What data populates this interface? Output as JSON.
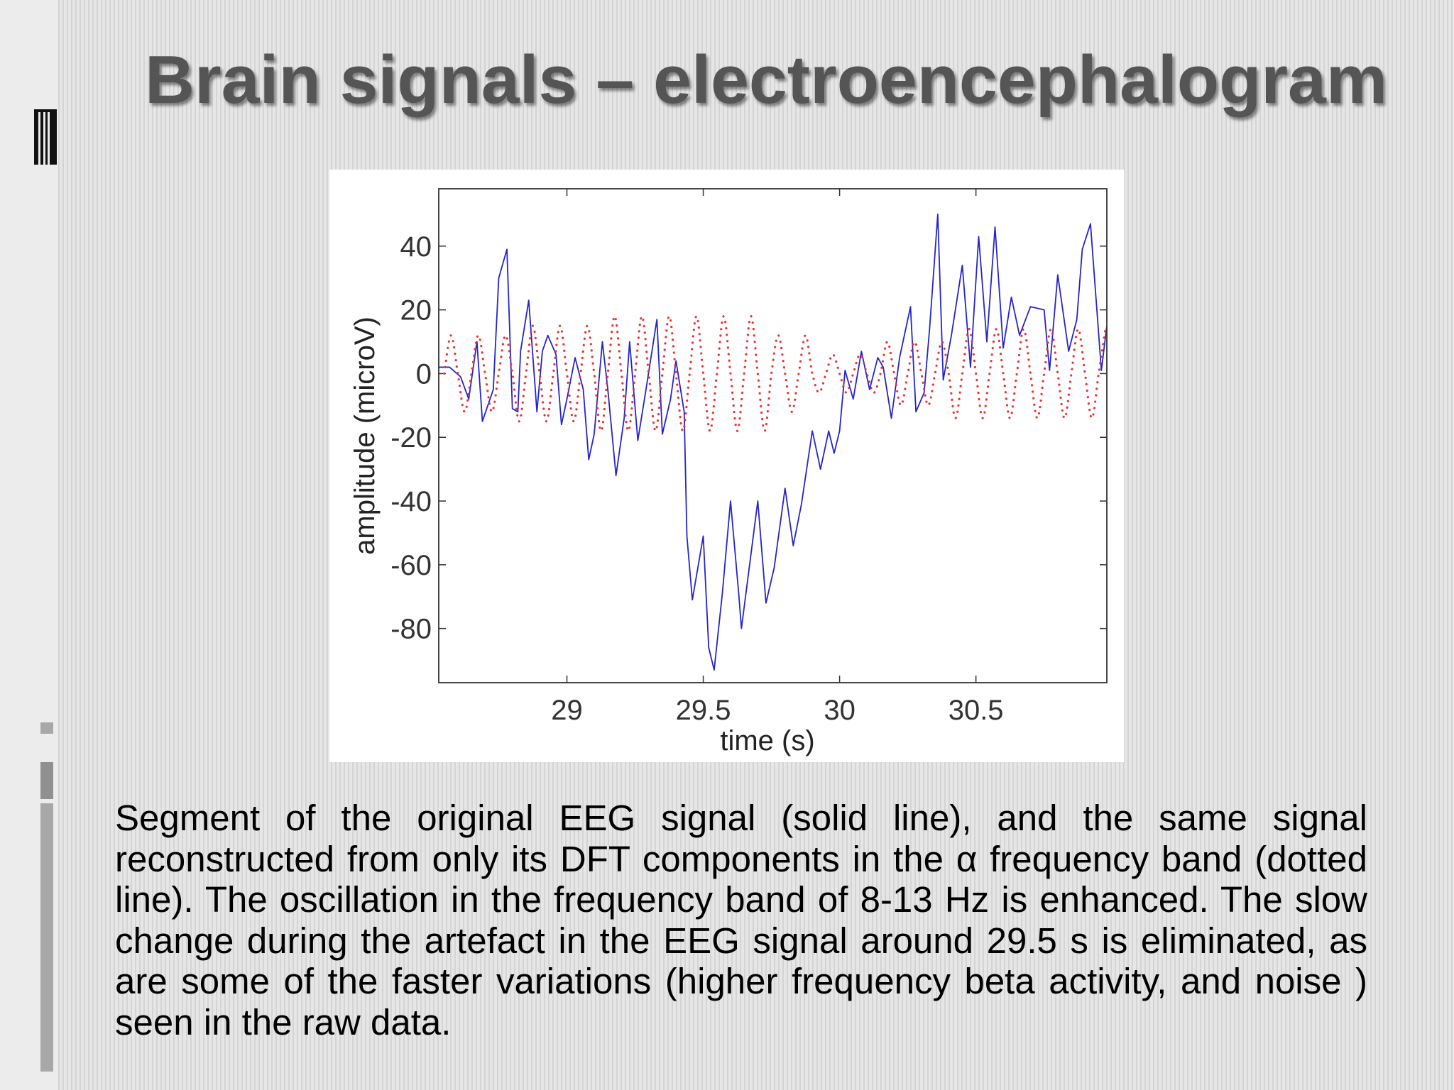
{
  "title": "Brain signals – electroencephalogram",
  "caption": "Segment of the original EEG signal (solid line), and the same signal reconstructed from only its DFT components in the α frequency band (dotted line). The oscillation in the frequency band of 8-13 Hz is enhanced. The slow change during the artefact in the EEG signal around 29.5 s is eliminated, as are some of the faster variations (higher frequency beta activity, and noise ) seen in the raw data.",
  "chart_data": {
    "type": "line",
    "xlabel": "time (s)",
    "ylabel": "amplitude (microV)",
    "xlim": [
      28.53,
      30.98
    ],
    "ylim": [
      -97,
      58
    ],
    "xticks": [
      29,
      29.5,
      30,
      30.5
    ],
    "yticks": [
      -80,
      -60,
      -40,
      -20,
      0,
      20,
      40
    ],
    "series": [
      {
        "color": "#2424d0",
        "style": "solid",
        "x": [
          28.53,
          28.57,
          28.61,
          28.64,
          28.67,
          28.69,
          28.73,
          28.75,
          28.78,
          28.8,
          28.82,
          28.83,
          28.86,
          28.89,
          28.91,
          28.93,
          28.96,
          28.98,
          29.0,
          29.03,
          29.06,
          29.08,
          29.1,
          29.13,
          29.15,
          29.18,
          29.21,
          29.23,
          29.26,
          29.29,
          29.33,
          29.35,
          29.38,
          29.4,
          29.43,
          29.44,
          29.46,
          29.48,
          29.5,
          29.52,
          29.54,
          29.57,
          29.6,
          29.63,
          29.64,
          29.67,
          29.7,
          29.73,
          29.76,
          29.8,
          29.83,
          29.86,
          29.9,
          29.93,
          29.96,
          29.98,
          30.0,
          30.02,
          30.05,
          30.08,
          30.11,
          30.14,
          30.16,
          30.19,
          30.22,
          30.26,
          30.28,
          30.31,
          30.33,
          30.36,
          30.38,
          30.41,
          30.45,
          30.48,
          30.51,
          30.54,
          30.57,
          30.6,
          30.63,
          30.66,
          30.7,
          30.75,
          30.77,
          30.8,
          30.84,
          30.87,
          30.89,
          30.92,
          30.94,
          30.96,
          30.98
        ],
        "values": [
          2,
          2,
          -1,
          -8,
          10,
          -15,
          -5,
          30,
          39,
          -11,
          -12,
          7,
          23,
          -12,
          7,
          12,
          6,
          -16,
          -8,
          5,
          -5,
          -27,
          -19,
          10,
          -5,
          -32,
          -14,
          10,
          -21,
          -5,
          17,
          -19,
          -8,
          4,
          -12,
          -51,
          -71,
          -61,
          -51,
          -86,
          -93,
          -69,
          -40,
          -69,
          -80,
          -60,
          -40,
          -72,
          -61,
          -36,
          -54,
          -41,
          -18,
          -30,
          -18,
          -25,
          -18,
          1,
          -8,
          7,
          -5,
          5,
          2,
          -14,
          5,
          21,
          -12,
          -6,
          14,
          50,
          -2,
          12,
          34,
          2,
          43,
          10,
          46,
          8,
          24,
          12,
          21,
          20,
          1,
          31,
          7,
          17,
          39,
          47,
          24,
          1,
          15
        ]
      },
      {
        "color": "#ee3030",
        "style": "dotted",
        "x": [
          28.55,
          28.575,
          28.6,
          28.625,
          28.65,
          28.675,
          28.7,
          28.725,
          28.75,
          28.775,
          28.8,
          28.825,
          28.85,
          28.875,
          28.9,
          28.925,
          28.95,
          28.975,
          29.0,
          29.025,
          29.05,
          29.075,
          29.1,
          29.125,
          29.15,
          29.175,
          29.2,
          29.225,
          29.25,
          29.275,
          29.3,
          29.325,
          29.35,
          29.375,
          29.4,
          29.425,
          29.45,
          29.475,
          29.5,
          29.525,
          29.55,
          29.575,
          29.6,
          29.625,
          29.65,
          29.675,
          29.7,
          29.725,
          29.75,
          29.775,
          29.8,
          29.825,
          29.85,
          29.875,
          29.9,
          29.925,
          29.95,
          29.975,
          30.0,
          30.025,
          30.05,
          30.075,
          30.1,
          30.125,
          30.15,
          30.175,
          30.2,
          30.225,
          30.25,
          30.275,
          30.3,
          30.325,
          30.35,
          30.375,
          30.4,
          30.425,
          30.45,
          30.475,
          30.5,
          30.525,
          30.55,
          30.575,
          30.6,
          30.625,
          30.65,
          30.675,
          30.7,
          30.725,
          30.75,
          30.775,
          30.8,
          30.825,
          30.85,
          30.875,
          30.9,
          30.925,
          30.95,
          30.975
        ],
        "values": [
          0,
          12,
          0,
          -12,
          0,
          12,
          0,
          -12,
          0,
          12,
          0,
          -15,
          0,
          15,
          0,
          -15,
          0,
          15,
          0,
          -15,
          0,
          15,
          0,
          -18,
          0,
          18,
          0,
          -18,
          0,
          18,
          0,
          -18,
          0,
          18,
          0,
          -18,
          0,
          18,
          0,
          -18,
          0,
          18,
          0,
          -18,
          0,
          18,
          0,
          -18,
          0,
          12,
          0,
          -12,
          0,
          12,
          0,
          -6,
          0,
          6,
          0,
          -6,
          0,
          6,
          0,
          -6,
          0,
          10,
          0,
          -10,
          0,
          10,
          0,
          -10,
          0,
          10,
          0,
          -14,
          0,
          14,
          0,
          -14,
          0,
          14,
          0,
          -14,
          0,
          14,
          0,
          -14,
          0,
          14,
          0,
          -14,
          0,
          14,
          0,
          -14,
          0,
          14
        ]
      }
    ]
  }
}
